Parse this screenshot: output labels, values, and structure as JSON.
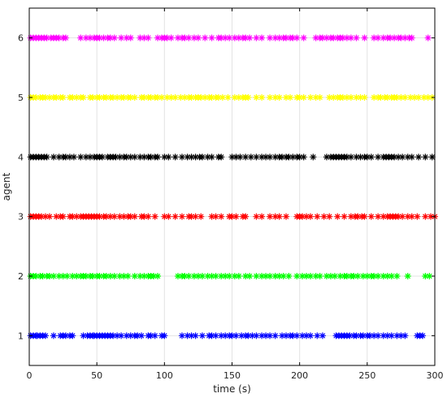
{
  "chart_data": {
    "type": "scatter",
    "marker": "asterisk",
    "xlabel": "time (s)",
    "ylabel": "agent",
    "xlim": [
      0,
      300
    ],
    "ylim": [
      0.5,
      6.5
    ],
    "xticks": [
      0,
      50,
      100,
      150,
      200,
      250,
      300
    ],
    "yticks": [
      1,
      2,
      3,
      4,
      5,
      6
    ],
    "grid": true,
    "series": [
      {
        "agent": 1,
        "color": "#0000ff",
        "x": [
          1,
          3,
          5,
          6,
          8,
          10,
          12,
          18,
          23,
          25,
          27,
          30,
          32,
          40,
          43,
          45,
          47,
          48,
          50,
          52,
          54,
          56,
          58,
          60,
          62,
          65,
          68,
          72,
          75,
          78,
          80,
          83,
          88,
          90,
          93,
          98,
          100,
          113,
          117,
          120,
          123,
          128,
          133,
          135,
          138,
          142,
          145,
          148,
          150,
          153,
          157,
          160,
          162,
          165,
          168,
          172,
          175,
          178,
          182,
          187,
          190,
          193,
          195,
          198,
          202,
          205,
          208,
          213,
          217,
          227,
          229,
          231,
          233,
          235,
          237,
          240,
          242,
          245,
          247,
          250,
          252,
          255,
          258,
          262,
          265,
          268,
          272,
          275,
          278,
          287,
          289,
          291
        ]
      },
      {
        "agent": 2,
        "color": "#00ff00",
        "x": [
          1,
          3,
          5,
          8,
          10,
          13,
          15,
          18,
          22,
          25,
          28,
          32,
          35,
          38,
          40,
          42,
          45,
          47,
          50,
          52,
          55,
          57,
          60,
          63,
          67,
          70,
          73,
          78,
          82,
          85,
          88,
          90,
          92,
          95,
          110,
          113,
          115,
          118,
          122,
          125,
          128,
          132,
          135,
          138,
          142,
          145,
          148,
          152,
          155,
          160,
          163,
          168,
          172,
          175,
          178,
          182,
          185,
          188,
          192,
          198,
          202,
          205,
          208,
          212,
          215,
          220,
          223,
          226,
          230,
          233,
          235,
          238,
          240,
          243,
          247,
          250,
          253,
          255,
          258,
          262,
          265,
          268,
          272,
          280,
          293,
          296
        ]
      },
      {
        "agent": 3,
        "color": "#ff0000",
        "x": [
          1,
          3,
          5,
          7,
          9,
          12,
          15,
          20,
          23,
          25,
          30,
          32,
          35,
          38,
          40,
          42,
          44,
          46,
          48,
          50,
          52,
          55,
          57,
          60,
          63,
          67,
          70,
          73,
          75,
          78,
          83,
          85,
          88,
          93,
          100,
          103,
          108,
          113,
          118,
          120,
          123,
          127,
          135,
          138,
          142,
          148,
          150,
          153,
          158,
          160,
          168,
          172,
          178,
          182,
          185,
          190,
          198,
          200,
          202,
          205,
          208,
          213,
          218,
          222,
          228,
          233,
          238,
          241,
          243,
          246,
          248,
          253,
          258,
          262,
          265,
          267,
          269,
          271,
          273,
          276,
          280,
          283,
          287,
          293,
          297,
          300
        ]
      },
      {
        "agent": 4,
        "color": "#000000",
        "x": [
          1,
          3,
          5,
          7,
          9,
          11,
          13,
          18,
          22,
          25,
          27,
          30,
          33,
          38,
          42,
          45,
          48,
          50,
          52,
          54,
          58,
          60,
          62,
          64,
          67,
          70,
          72,
          75,
          78,
          82,
          85,
          88,
          90,
          93,
          95,
          100,
          103,
          108,
          113,
          117,
          120,
          123,
          126,
          128,
          132,
          135,
          140,
          142,
          150,
          153,
          156,
          160,
          164,
          168,
          172,
          175,
          178,
          182,
          185,
          187,
          190,
          192,
          195,
          198,
          200,
          203,
          210,
          220,
          223,
          225,
          227,
          229,
          231,
          233,
          235,
          238,
          242,
          245,
          248,
          250,
          253,
          258,
          262,
          264,
          266,
          268,
          270,
          273,
          276,
          280,
          283,
          288,
          293,
          298
        ]
      },
      {
        "agent": 5,
        "color": "#ffff00",
        "x": [
          1,
          3,
          5,
          8,
          10,
          12,
          15,
          18,
          20,
          23,
          25,
          30,
          32,
          35,
          38,
          40,
          45,
          47,
          50,
          52,
          55,
          57,
          60,
          62,
          65,
          68,
          70,
          73,
          75,
          78,
          83,
          85,
          88,
          90,
          93,
          95,
          98,
          102,
          105,
          108,
          112,
          115,
          118,
          120,
          123,
          125,
          127,
          130,
          133,
          135,
          138,
          140,
          143,
          147,
          152,
          155,
          158,
          160,
          162,
          168,
          172,
          178,
          182,
          185,
          190,
          193,
          198,
          200,
          203,
          208,
          212,
          215,
          222,
          225,
          228,
          230,
          232,
          235,
          238,
          242,
          245,
          248,
          255,
          258,
          260,
          263,
          265,
          268,
          270,
          272,
          275,
          278,
          282,
          285,
          288,
          292,
          295,
          298
        ]
      },
      {
        "agent": 6,
        "color": "#ff00ff",
        "x": [
          1,
          3,
          5,
          7,
          9,
          11,
          13,
          16,
          18,
          20,
          22,
          25,
          27,
          38,
          42,
          45,
          48,
          50,
          52,
          55,
          58,
          60,
          63,
          68,
          72,
          75,
          82,
          85,
          88,
          95,
          98,
          100,
          102,
          105,
          110,
          113,
          115,
          118,
          122,
          125,
          130,
          135,
          140,
          142,
          145,
          148,
          152,
          155,
          158,
          160,
          163,
          168,
          172,
          178,
          182,
          185,
          188,
          190,
          193,
          195,
          198,
          203,
          212,
          215,
          217,
          220,
          223,
          225,
          228,
          230,
          232,
          235,
          238,
          242,
          248,
          255,
          258,
          262,
          265,
          267,
          270,
          273,
          275,
          278,
          281,
          283,
          295
        ]
      }
    ]
  }
}
